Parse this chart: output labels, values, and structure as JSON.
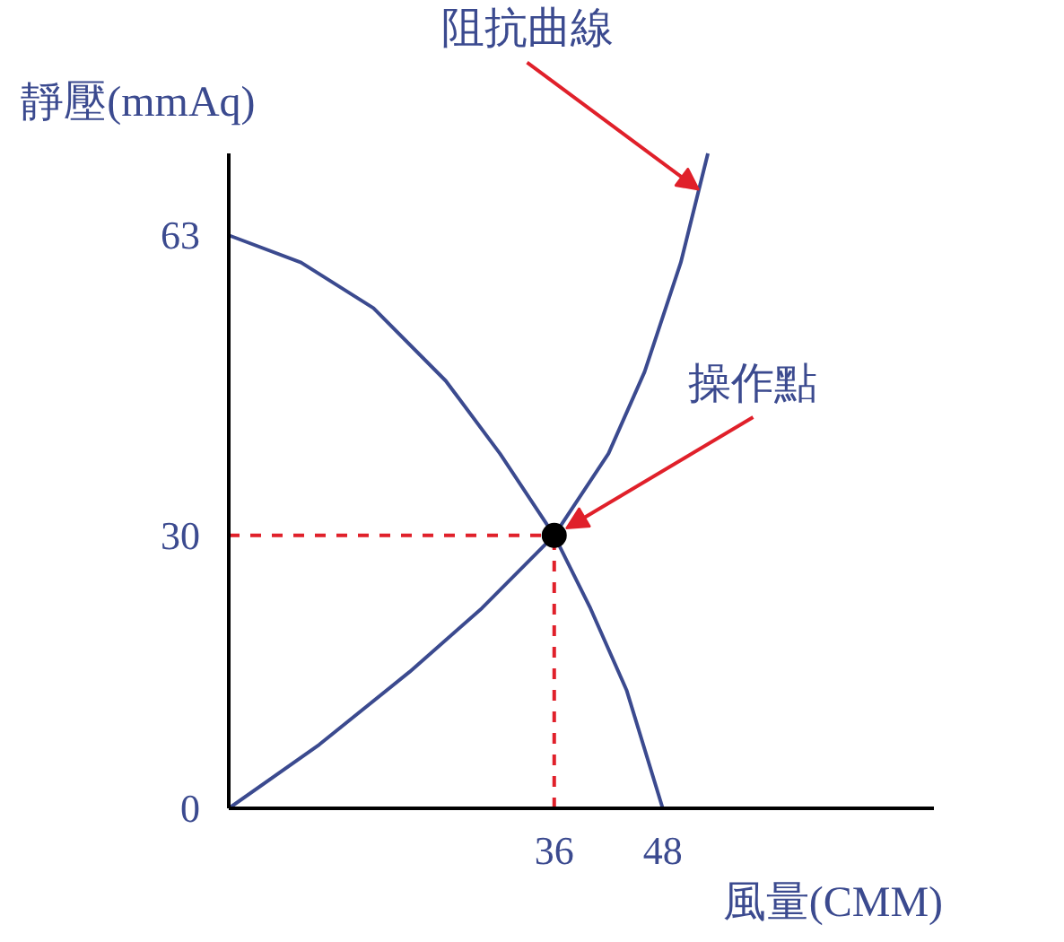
{
  "chart_data": {
    "type": "line",
    "xlabel": "風量(CMM)",
    "ylabel": "靜壓(mmAq)",
    "xlim": [
      0,
      78
    ],
    "ylim": [
      0,
      72
    ],
    "xticks": [
      36,
      48
    ],
    "yticks": [
      0,
      30,
      63
    ],
    "grid": false,
    "marker": "none",
    "line_style": "solid",
    "series": [
      {
        "color": "#3b4a8f",
        "x": [
          0,
          8,
          16,
          24,
          30,
          36,
          40,
          44,
          48
        ],
        "values": [
          63,
          60,
          55,
          47,
          39,
          30,
          22,
          13,
          0
        ]
      },
      {
        "color": "#3b4a8f",
        "x": [
          0,
          10,
          20,
          28,
          36,
          42,
          46,
          50,
          53
        ],
        "values": [
          0,
          7,
          15,
          22,
          30,
          39,
          48,
          60,
          72
        ]
      },
      {
        "type": "scatter",
        "marker": "circle",
        "color": "#000000",
        "x": [
          36
        ],
        "values": [
          30
        ]
      }
    ],
    "ref_lines": [
      {
        "axis": "x",
        "value": 36,
        "color": "#e0202a",
        "line_style": "dashed"
      },
      {
        "axis": "y",
        "value": 30,
        "color": "#e0202a",
        "line_style": "dashed"
      }
    ],
    "annotations": [
      {
        "text": "阻抗曲線",
        "x": 52,
        "y": 68
      },
      {
        "text": "操作點",
        "x": 36,
        "y": 30
      }
    ]
  }
}
